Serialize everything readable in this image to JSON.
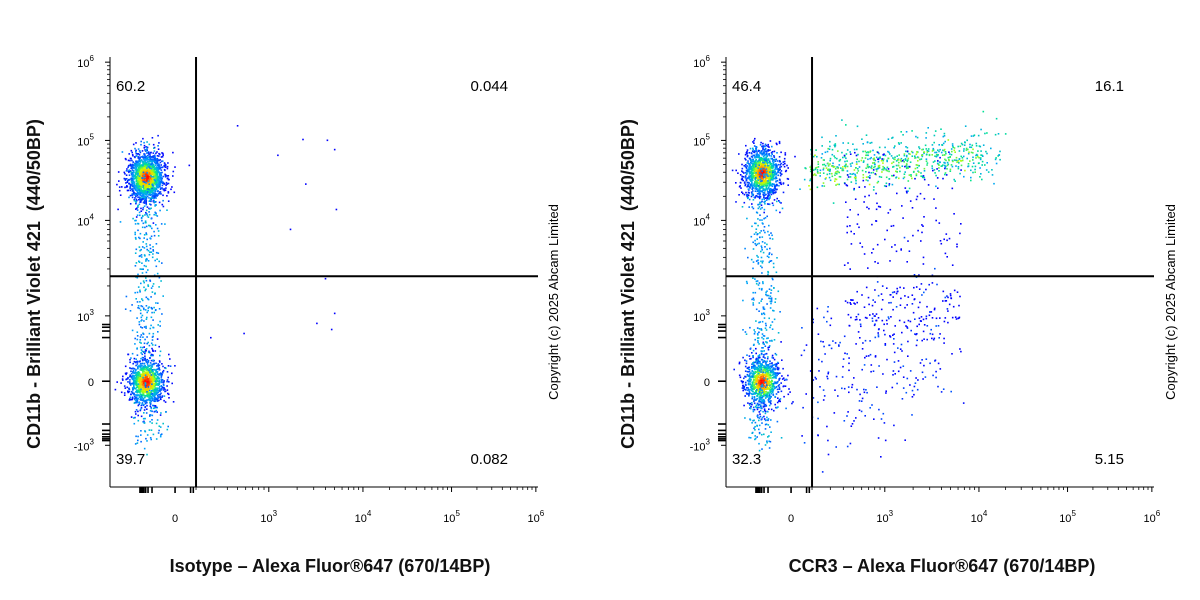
{
  "chart_data": [
    {
      "type": "scatter",
      "xlabel": "Isotype – Alexa Fluor®647 (670/14BP)",
      "ylabel": "CD11b - Brilliant Violet 421  (440/50BP)",
      "copyright": "Copyright (c) 2025 Abcam Limited",
      "x_scale": "biexponential",
      "y_scale": "biexponential",
      "x_ticks": [
        {
          "value": 0,
          "label": "0",
          "sup": ""
        },
        {
          "value": 1000,
          "label": "10",
          "sup": "3"
        },
        {
          "value": 10000,
          "label": "10",
          "sup": "4"
        },
        {
          "value": 100000,
          "label": "10",
          "sup": "5"
        },
        {
          "value": 1000000,
          "label": "10",
          "sup": "6"
        }
      ],
      "y_ticks": [
        {
          "value": 1000000,
          "label": "10",
          "sup": "6"
        },
        {
          "value": 100000,
          "label": "10",
          "sup": "5"
        },
        {
          "value": 10000,
          "label": "10",
          "sup": "4"
        },
        {
          "value": 1000,
          "label": "10",
          "sup": "3"
        },
        {
          "value": 0,
          "label": "0",
          "sup": ""
        },
        {
          "value": -1000,
          "label": "-10",
          "sup": "3"
        }
      ],
      "gate_x": 200,
      "gate_y": 2500,
      "quadrants": {
        "upper_left": "60.2",
        "upper_right": "0.044",
        "lower_left": "39.7",
        "lower_right": "0.082"
      },
      "populations": [
        {
          "name": "",
          "x_center": -150,
          "y_center": 35000,
          "count_percent": 60.2
        },
        {
          "name": "",
          "x_center": -150,
          "y_center": 0,
          "count_percent": 39.7
        }
      ],
      "colors": {
        "high_density": "#ff0000",
        "mid_density": "#ffff00",
        "low_mid_density": "#00ff80",
        "low_density": "#0000ff"
      }
    },
    {
      "type": "scatter",
      "xlabel": "CCR3 – Alexa Fluor®647 (670/14BP)",
      "ylabel": "CD11b - Brilliant Violet 421  (440/50BP)",
      "copyright": "Copyright (c) 2025 Abcam Limited",
      "x_scale": "biexponential",
      "y_scale": "biexponential",
      "x_ticks": [
        {
          "value": 0,
          "label": "0",
          "sup": ""
        },
        {
          "value": 1000,
          "label": "10",
          "sup": "3"
        },
        {
          "value": 10000,
          "label": "10",
          "sup": "4"
        },
        {
          "value": 100000,
          "label": "10",
          "sup": "5"
        },
        {
          "value": 1000000,
          "label": "10",
          "sup": "6"
        }
      ],
      "y_ticks": [
        {
          "value": 1000000,
          "label": "10",
          "sup": "6"
        },
        {
          "value": 100000,
          "label": "10",
          "sup": "5"
        },
        {
          "value": 10000,
          "label": "10",
          "sup": "4"
        },
        {
          "value": 1000,
          "label": "10",
          "sup": "3"
        },
        {
          "value": 0,
          "label": "0",
          "sup": ""
        },
        {
          "value": -1000,
          "label": "-10",
          "sup": "3"
        }
      ],
      "gate_x": 200,
      "gate_y": 2500,
      "quadrants": {
        "upper_left": "46.4",
        "upper_right": "16.1",
        "lower_left": "32.3",
        "lower_right": "5.15"
      },
      "populations": [
        {
          "name": "",
          "x_center": -150,
          "y_center": 40000,
          "count_percent": 46.4
        },
        {
          "name": "",
          "x_center": 1500,
          "y_center": 50000,
          "count_percent": 16.1
        },
        {
          "name": "",
          "x_center": -150,
          "y_center": 0,
          "count_percent": 32.3
        },
        {
          "name": "",
          "x_center": 1000,
          "y_center": 0,
          "count_percent": 5.15
        }
      ],
      "colors": {
        "high_density": "#ff0000",
        "mid_density": "#ffff00",
        "low_mid_density": "#00ff80",
        "low_density": "#0000ff"
      }
    }
  ]
}
